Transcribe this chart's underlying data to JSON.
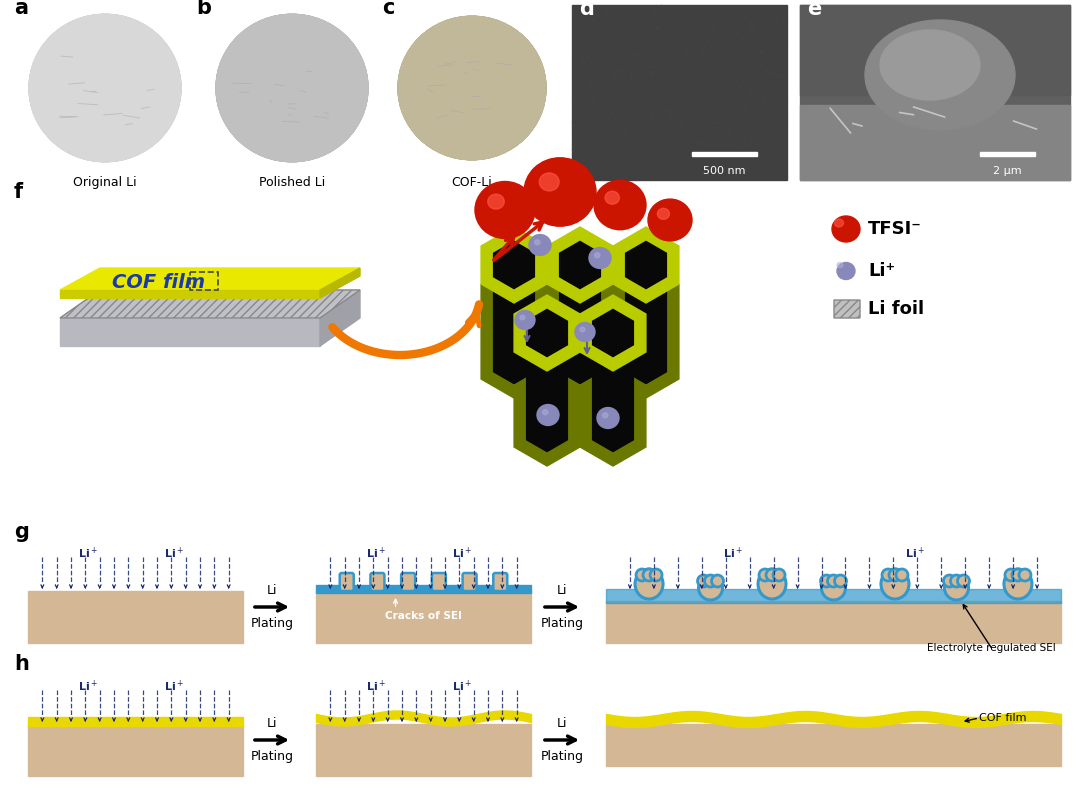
{
  "bg_color": "#ffffff",
  "panel_label_fontsize": 15,
  "label_a": "Original Li",
  "label_b": "Polished Li",
  "label_c": "COF-Li",
  "scale_d": "500 nm",
  "scale_e": "2 μm",
  "cof_film_text": "COF film",
  "tfsi_label": "TFSI⁻",
  "li_plus_label": "Li⁺",
  "li_foil_label": "Li foil",
  "cracks_sei_text": "Cracks of SEI",
  "electrolyte_sei_text": "Electrolyte regulated SEI",
  "cof_film_label": "COF film",
  "li_plating_1": "Li",
  "li_plating_2": "Plating",
  "navy": "#1a2a6c",
  "tfsi_red": "#cc1100",
  "sei_blue": "#3399cc",
  "li_body": "#d4b896",
  "li_body_dark": "#c4a882",
  "yellow_cof": "#e8e800",
  "yellow_cof2": "#cccc00",
  "yellow_film": "#e8d800",
  "gray_li_plus": "#8888bb",
  "cof_yellow_green": "#b8cc00",
  "dark_wall": "#080808",
  "orange_arrow": "#f07800"
}
